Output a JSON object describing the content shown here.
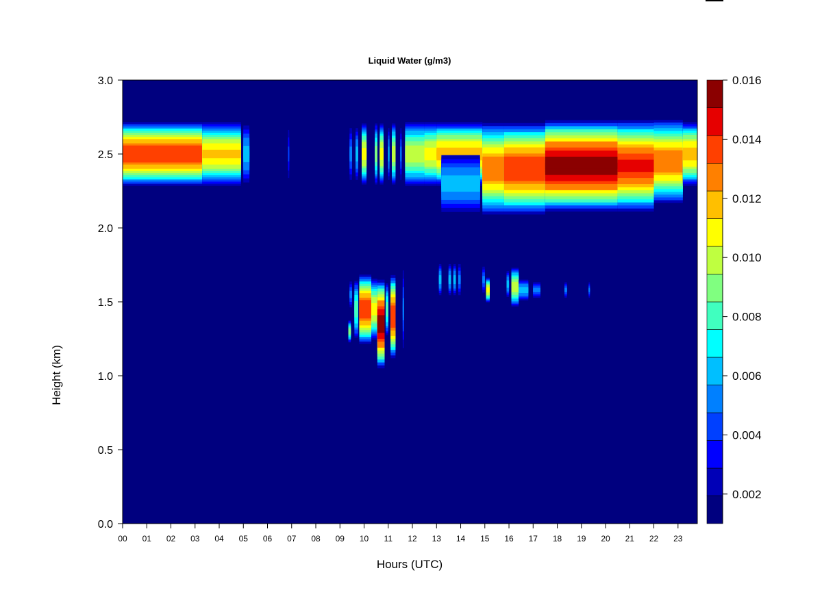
{
  "chart_data": {
    "type": "heatmap",
    "title": "Liquid Water (g/m3)",
    "xlabel": "Hours (UTC)",
    "ylabel": "Height (km)",
    "xlim": [
      0,
      23.8
    ],
    "ylim": [
      0,
      3.0
    ],
    "x_ticks": [
      "00",
      "01",
      "02",
      "03",
      "04",
      "05",
      "06",
      "07",
      "08",
      "09",
      "10",
      "11",
      "12",
      "13",
      "14",
      "15",
      "16",
      "17",
      "18",
      "19",
      "20",
      "21",
      "22",
      "23"
    ],
    "y_ticks": [
      "0.0",
      "0.5",
      "1.0",
      "1.5",
      "2.0",
      "2.5",
      "3.0"
    ],
    "background_value": 0.001,
    "colorbar": {
      "min": 0.001,
      "max": 0.016,
      "tick_values": [
        0.002,
        0.004,
        0.006,
        0.008,
        0.01,
        0.012,
        0.014,
        0.016
      ],
      "tick_labels": [
        "0.002",
        "0.004",
        "0.006",
        "0.008",
        "0.010",
        "0.012",
        "0.014",
        "0.016"
      ],
      "colors": [
        "#00007f",
        "#0000b7",
        "#0000ff",
        "#0040ff",
        "#0080ff",
        "#00bfff",
        "#00ffff",
        "#40ffbf",
        "#80ff80",
        "#bfff40",
        "#ffff00",
        "#ffbf00",
        "#ff8000",
        "#ff4000",
        "#e60000",
        "#8b0000"
      ]
    },
    "blobs": [
      {
        "x_start": 0.0,
        "x_end": 3.3,
        "y_center": 2.5,
        "half_height": 0.23,
        "peak": 0.014
      },
      {
        "x_start": 3.3,
        "x_end": 4.9,
        "y_center": 2.5,
        "half_height": 0.23,
        "peak": 0.0115
      },
      {
        "x_start": 5.0,
        "x_end": 5.25,
        "y_center": 2.5,
        "half_height": 0.22,
        "peak": 0.006
      },
      {
        "x_start": 6.85,
        "x_end": 6.9,
        "y_center": 2.5,
        "half_height": 0.2,
        "peak": 0.004
      },
      {
        "x_start": 9.4,
        "x_end": 9.5,
        "y_center": 2.5,
        "half_height": 0.2,
        "peak": 0.005
      },
      {
        "x_start": 9.65,
        "x_end": 9.75,
        "y_center": 2.5,
        "half_height": 0.2,
        "peak": 0.006
      },
      {
        "x_start": 9.9,
        "x_end": 10.1,
        "y_center": 2.5,
        "half_height": 0.22,
        "peak": 0.011
      },
      {
        "x_start": 10.45,
        "x_end": 10.55,
        "y_center": 2.5,
        "half_height": 0.22,
        "peak": 0.009
      },
      {
        "x_start": 10.65,
        "x_end": 10.8,
        "y_center": 2.5,
        "half_height": 0.22,
        "peak": 0.011
      },
      {
        "x_start": 11.0,
        "x_end": 11.05,
        "y_center": 2.5,
        "half_height": 0.2,
        "peak": 0.006
      },
      {
        "x_start": 11.15,
        "x_end": 11.3,
        "y_center": 2.5,
        "half_height": 0.22,
        "peak": 0.01
      },
      {
        "x_start": 11.5,
        "x_end": 11.55,
        "y_center": 2.5,
        "half_height": 0.2,
        "peak": 0.005
      },
      {
        "x_start": 11.7,
        "x_end": 12.5,
        "y_center": 2.5,
        "half_height": 0.23,
        "peak": 0.01
      },
      {
        "x_start": 12.5,
        "x_end": 13.0,
        "y_center": 2.5,
        "half_height": 0.23,
        "peak": 0.011
      },
      {
        "x_start": 13.0,
        "x_end": 14.9,
        "y_center": 2.5,
        "half_height": 0.23,
        "peak": 0.012
      },
      {
        "x_start": 13.2,
        "x_end": 14.8,
        "y_center": 2.3,
        "half_height": 0.22,
        "peak": 0.006
      },
      {
        "x_start": 14.9,
        "x_end": 15.8,
        "y_center": 2.4,
        "half_height": 0.33,
        "peak": 0.013
      },
      {
        "x_start": 15.8,
        "x_end": 17.5,
        "y_center": 2.4,
        "half_height": 0.33,
        "peak": 0.014
      },
      {
        "x_start": 17.5,
        "x_end": 20.5,
        "y_center": 2.42,
        "half_height": 0.33,
        "peak": 0.016
      },
      {
        "x_start": 20.5,
        "x_end": 22.0,
        "y_center": 2.42,
        "half_height": 0.33,
        "peak": 0.0145
      },
      {
        "x_start": 22.0,
        "x_end": 23.2,
        "y_center": 2.45,
        "half_height": 0.3,
        "peak": 0.013
      },
      {
        "x_start": 23.2,
        "x_end": 23.8,
        "y_center": 2.5,
        "half_height": 0.23,
        "peak": 0.012
      },
      {
        "x_start": 9.35,
        "x_end": 9.45,
        "y_center": 1.3,
        "half_height": 0.08,
        "peak": 0.009
      },
      {
        "x_start": 9.4,
        "x_end": 9.5,
        "y_center": 1.55,
        "half_height": 0.1,
        "peak": 0.005
      },
      {
        "x_start": 9.6,
        "x_end": 9.75,
        "y_center": 1.45,
        "half_height": 0.22,
        "peak": 0.008
      },
      {
        "x_start": 9.8,
        "x_end": 10.3,
        "y_center": 1.45,
        "half_height": 0.25,
        "peak": 0.014
      },
      {
        "x_start": 10.3,
        "x_end": 10.55,
        "y_center": 1.45,
        "half_height": 0.22,
        "peak": 0.011
      },
      {
        "x_start": 10.55,
        "x_end": 10.85,
        "y_center": 1.35,
        "half_height": 0.32,
        "peak": 0.016
      },
      {
        "x_start": 10.9,
        "x_end": 11.0,
        "y_center": 1.45,
        "half_height": 0.2,
        "peak": 0.008
      },
      {
        "x_start": 11.1,
        "x_end": 11.3,
        "y_center": 1.4,
        "half_height": 0.3,
        "peak": 0.014
      },
      {
        "x_start": 11.6,
        "x_end": 11.65,
        "y_center": 1.45,
        "half_height": 0.3,
        "peak": 0.005
      },
      {
        "x_start": 13.1,
        "x_end": 13.2,
        "y_center": 1.65,
        "half_height": 0.12,
        "peak": 0.006
      },
      {
        "x_start": 13.5,
        "x_end": 13.6,
        "y_center": 1.65,
        "half_height": 0.12,
        "peak": 0.006
      },
      {
        "x_start": 13.7,
        "x_end": 13.8,
        "y_center": 1.65,
        "half_height": 0.12,
        "peak": 0.006
      },
      {
        "x_start": 13.9,
        "x_end": 14.0,
        "y_center": 1.65,
        "half_height": 0.12,
        "peak": 0.005
      },
      {
        "x_start": 14.9,
        "x_end": 15.0,
        "y_center": 1.65,
        "half_height": 0.1,
        "peak": 0.005
      },
      {
        "x_start": 15.05,
        "x_end": 15.2,
        "y_center": 1.58,
        "half_height": 0.09,
        "peak": 0.011
      },
      {
        "x_start": 15.9,
        "x_end": 16.0,
        "y_center": 1.62,
        "half_height": 0.1,
        "peak": 0.006
      },
      {
        "x_start": 16.1,
        "x_end": 16.4,
        "y_center": 1.6,
        "half_height": 0.14,
        "peak": 0.01
      },
      {
        "x_start": 16.4,
        "x_end": 16.8,
        "y_center": 1.58,
        "half_height": 0.08,
        "peak": 0.006
      },
      {
        "x_start": 17.0,
        "x_end": 17.3,
        "y_center": 1.58,
        "half_height": 0.06,
        "peak": 0.005
      },
      {
        "x_start": 18.3,
        "x_end": 18.4,
        "y_center": 1.58,
        "half_height": 0.06,
        "peak": 0.005
      },
      {
        "x_start": 19.3,
        "x_end": 19.35,
        "y_center": 1.58,
        "half_height": 0.06,
        "peak": 0.005
      }
    ]
  }
}
